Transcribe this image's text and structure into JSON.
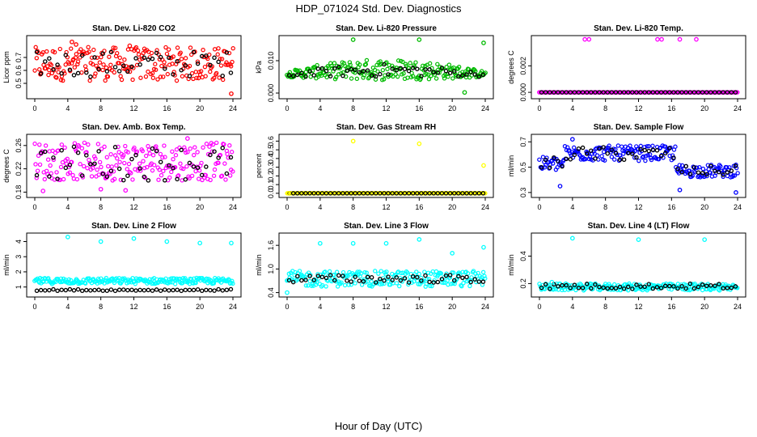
{
  "title": "HDP_071024  Std. Dev. Diagnostics",
  "xlabel": "Hour of Day (UTC)",
  "chart_data": [
    {
      "type": "scatter",
      "title": "Stan. Dev. Li-820 CO2",
      "ylabel": "Licor ppm",
      "xlim": [
        0,
        24
      ],
      "ylim": [
        0.4,
        0.85
      ],
      "xticks": [
        "0",
        "4",
        "8",
        "12",
        "16",
        "20",
        "24"
      ],
      "yticks": [
        "0.5",
        "0.6",
        "0.7"
      ],
      "yticks_v": [
        0.5,
        0.6,
        0.7
      ],
      "color": "#ff0000",
      "base": {
        "min": 0.52,
        "max": 0.78,
        "trend": "flat"
      },
      "black": {
        "min": 0.55,
        "max": 0.75
      },
      "outliers": [
        {
          "x": 4.5,
          "y": 0.82
        },
        {
          "x": 5.0,
          "y": 0.8
        },
        {
          "x": 11.5,
          "y": 0.79
        },
        {
          "x": 23.8,
          "y": 0.42
        }
      ]
    },
    {
      "type": "scatter",
      "title": "Stan. Dev. Li-820 Pressure",
      "ylabel": "kPa",
      "xlim": [
        0,
        24
      ],
      "ylim": [
        -0.001,
        0.017
      ],
      "xticks": [
        "0",
        "4",
        "8",
        "12",
        "16",
        "20",
        "24"
      ],
      "yticks": [
        "0.000",
        "0.010"
      ],
      "yticks_v": [
        0.0,
        0.01
      ],
      "color": "#00bb00",
      "base": {
        "min": 0.004,
        "max": 0.0105,
        "trend": "arch"
      },
      "black": {
        "min": 0.005,
        "max": 0.009
      },
      "outliers": [
        {
          "x": 8,
          "y": 0.0165
        },
        {
          "x": 16,
          "y": 0.0165
        },
        {
          "x": 23.8,
          "y": 0.0155
        },
        {
          "x": 21.5,
          "y": 0.0002
        }
      ]
    },
    {
      "type": "scatter",
      "title": "Stan. Dev. Li-820 Temp.",
      "ylabel": "degrees C",
      "xlim": [
        0,
        24
      ],
      "ylim": [
        -0.0003,
        0.0041
      ],
      "xticks": [
        "0",
        "4",
        "8",
        "12",
        "16",
        "20",
        "24"
      ],
      "yticks": [
        "0.000",
        "0.002"
      ],
      "yticks_v": [
        0.0,
        0.002
      ],
      "color": "#ff00ff",
      "base": {
        "min": 0.0,
        "max": 0.0,
        "trend": "zero"
      },
      "black": {
        "min": 0.0,
        "max": 0.0
      },
      "outliers": [
        {
          "x": 5.5,
          "y": 0.004
        },
        {
          "x": 6.0,
          "y": 0.004
        },
        {
          "x": 14.3,
          "y": 0.004
        },
        {
          "x": 14.8,
          "y": 0.004
        },
        {
          "x": 17.0,
          "y": 0.004
        },
        {
          "x": 19.0,
          "y": 0.004
        }
      ]
    },
    {
      "type": "scatter",
      "title": "Stan. Dev. Amb. Box Temp.",
      "ylabel": "degrees C",
      "xlim": [
        0,
        24
      ],
      "ylim": [
        0.175,
        0.275
      ],
      "xticks": [
        "0",
        "4",
        "8",
        "12",
        "16",
        "20",
        "24"
      ],
      "yticks": [
        "0.18",
        "0.22",
        "0.26"
      ],
      "yticks_v": [
        0.18,
        0.22,
        0.26
      ],
      "color": "#ff00ff",
      "base": {
        "min": 0.2,
        "max": 0.265,
        "trend": "flat"
      },
      "black": {
        "min": 0.2,
        "max": 0.26
      },
      "outliers": [
        {
          "x": 1.0,
          "y": 0.182
        },
        {
          "x": 8.0,
          "y": 0.185
        },
        {
          "x": 11.0,
          "y": 0.183
        },
        {
          "x": 18.5,
          "y": 0.272
        }
      ]
    },
    {
      "type": "scatter",
      "title": "Stan. Dev. Gas Stream RH",
      "ylabel": "percent",
      "xlim": [
        0,
        24
      ],
      "ylim": [
        -0.02,
        0.65
      ],
      "xticks": [
        "0",
        "4",
        "8",
        "12",
        "16",
        "20",
        "24"
      ],
      "yticks": [
        "0.0",
        "0.1",
        "0.2",
        "0.3",
        "0.4",
        "0.5",
        "0.6"
      ],
      "yticks_v": [
        0,
        0.1,
        0.2,
        0.3,
        0.4,
        0.5,
        0.6
      ],
      "color": "#ffff00",
      "base": {
        "min": 0.0,
        "max": 0.0,
        "trend": "zero"
      },
      "black": {
        "min": 0.0,
        "max": 0.0
      },
      "outliers": [
        {
          "x": 8,
          "y": 0.6
        },
        {
          "x": 16,
          "y": 0.57
        },
        {
          "x": 23.8,
          "y": 0.32
        },
        {
          "x": 0.2,
          "y": 0.0
        }
      ]
    },
    {
      "type": "scatter",
      "title": "Stan. Dev. Sample Flow",
      "ylabel": "ml/min",
      "xlim": [
        0,
        24
      ],
      "ylim": [
        0.28,
        0.74
      ],
      "xticks": [
        "0",
        "4",
        "8",
        "12",
        "16",
        "20",
        "24"
      ],
      "yticks": [
        "0.3",
        "0.5",
        "0.7"
      ],
      "yticks_v": [
        0.3,
        0.5,
        0.7
      ],
      "color": "#0000ff",
      "base": {
        "min": 0.45,
        "max": 0.68,
        "trend": "sample"
      },
      "black": {
        "min": 0.45,
        "max": 0.65
      },
      "outliers": [
        {
          "x": 4.0,
          "y": 0.72
        },
        {
          "x": 23.8,
          "y": 0.3
        },
        {
          "x": 17.0,
          "y": 0.32
        },
        {
          "x": 2.5,
          "y": 0.35
        }
      ]
    },
    {
      "type": "scatter",
      "title": "Stan. Dev. Line 2 Flow",
      "ylabel": "ml/min",
      "xlim": [
        0,
        24
      ],
      "ylim": [
        0.5,
        4.4
      ],
      "xticks": [
        "0",
        "4",
        "8",
        "12",
        "16",
        "20",
        "24"
      ],
      "yticks": [
        "1",
        "2",
        "3",
        "4"
      ],
      "yticks_v": [
        1,
        2,
        3,
        4
      ],
      "color": "#00ffff",
      "base": {
        "min": 1.2,
        "max": 1.6,
        "trend": "flat"
      },
      "black": {
        "min": 0.75,
        "max": 0.85
      },
      "outliers": [
        {
          "x": 4,
          "y": 4.3
        },
        {
          "x": 8,
          "y": 4.0
        },
        {
          "x": 12,
          "y": 4.2
        },
        {
          "x": 16,
          "y": 4.0
        },
        {
          "x": 20,
          "y": 3.9
        },
        {
          "x": 23.8,
          "y": 3.9
        }
      ]
    },
    {
      "type": "scatter",
      "title": "Stan. Dev. Line 3 Flow",
      "ylabel": "ml/min",
      "xlim": [
        0,
        24
      ],
      "ylim": [
        0.35,
        1.85
      ],
      "xticks": [
        "0",
        "4",
        "8",
        "12",
        "16",
        "20",
        "24"
      ],
      "yticks": [
        "0.4",
        "1.0",
        "1.6"
      ],
      "yticks_v": [
        0.4,
        1.0,
        1.6
      ],
      "color": "#00ffff",
      "base": {
        "min": 0.55,
        "max": 0.95,
        "trend": "flat"
      },
      "black": {
        "min": 0.65,
        "max": 0.85
      },
      "outliers": [
        {
          "x": 4,
          "y": 1.65
        },
        {
          "x": 8,
          "y": 1.65
        },
        {
          "x": 12,
          "y": 1.65
        },
        {
          "x": 16,
          "y": 1.75
        },
        {
          "x": 20,
          "y": 1.4
        },
        {
          "x": 23.8,
          "y": 1.55
        },
        {
          "x": 0,
          "y": 0.4
        }
      ]
    },
    {
      "type": "scatter",
      "title": "Stan. Dev. Line 4 (LT) Flow",
      "ylabel": "ml/min",
      "xlim": [
        0,
        24
      ],
      "ylim": [
        0.12,
        0.55
      ],
      "xticks": [
        "0",
        "4",
        "8",
        "12",
        "16",
        "20",
        "24"
      ],
      "yticks": [
        "0.2",
        "0.4"
      ],
      "yticks_v": [
        0.2,
        0.4
      ],
      "color": "#00ffff",
      "base": {
        "min": 0.15,
        "max": 0.2,
        "trend": "flat"
      },
      "black": {
        "min": 0.16,
        "max": 0.2
      },
      "outliers": [
        {
          "x": 4,
          "y": 0.53
        },
        {
          "x": 12,
          "y": 0.52
        },
        {
          "x": 20,
          "y": 0.52
        },
        {
          "x": 1.5,
          "y": 0.21
        }
      ]
    }
  ]
}
